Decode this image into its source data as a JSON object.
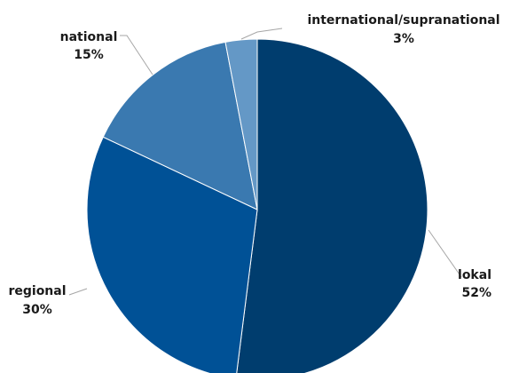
{
  "chart_data": {
    "type": "pie",
    "title": "",
    "order": "clockwise from top",
    "slices": [
      {
        "name": "lokal",
        "value": 52,
        "label": "52%",
        "color": "#003d6e"
      },
      {
        "name": "regional",
        "value": 30,
        "label": "30%",
        "color": "#005196"
      },
      {
        "name": "national",
        "value": 15,
        "label": "15%",
        "color": "#3a79b0"
      },
      {
        "name": "international/supranational",
        "value": 3,
        "label": "3%",
        "color": "#6498c6"
      }
    ],
    "legend": "none"
  }
}
